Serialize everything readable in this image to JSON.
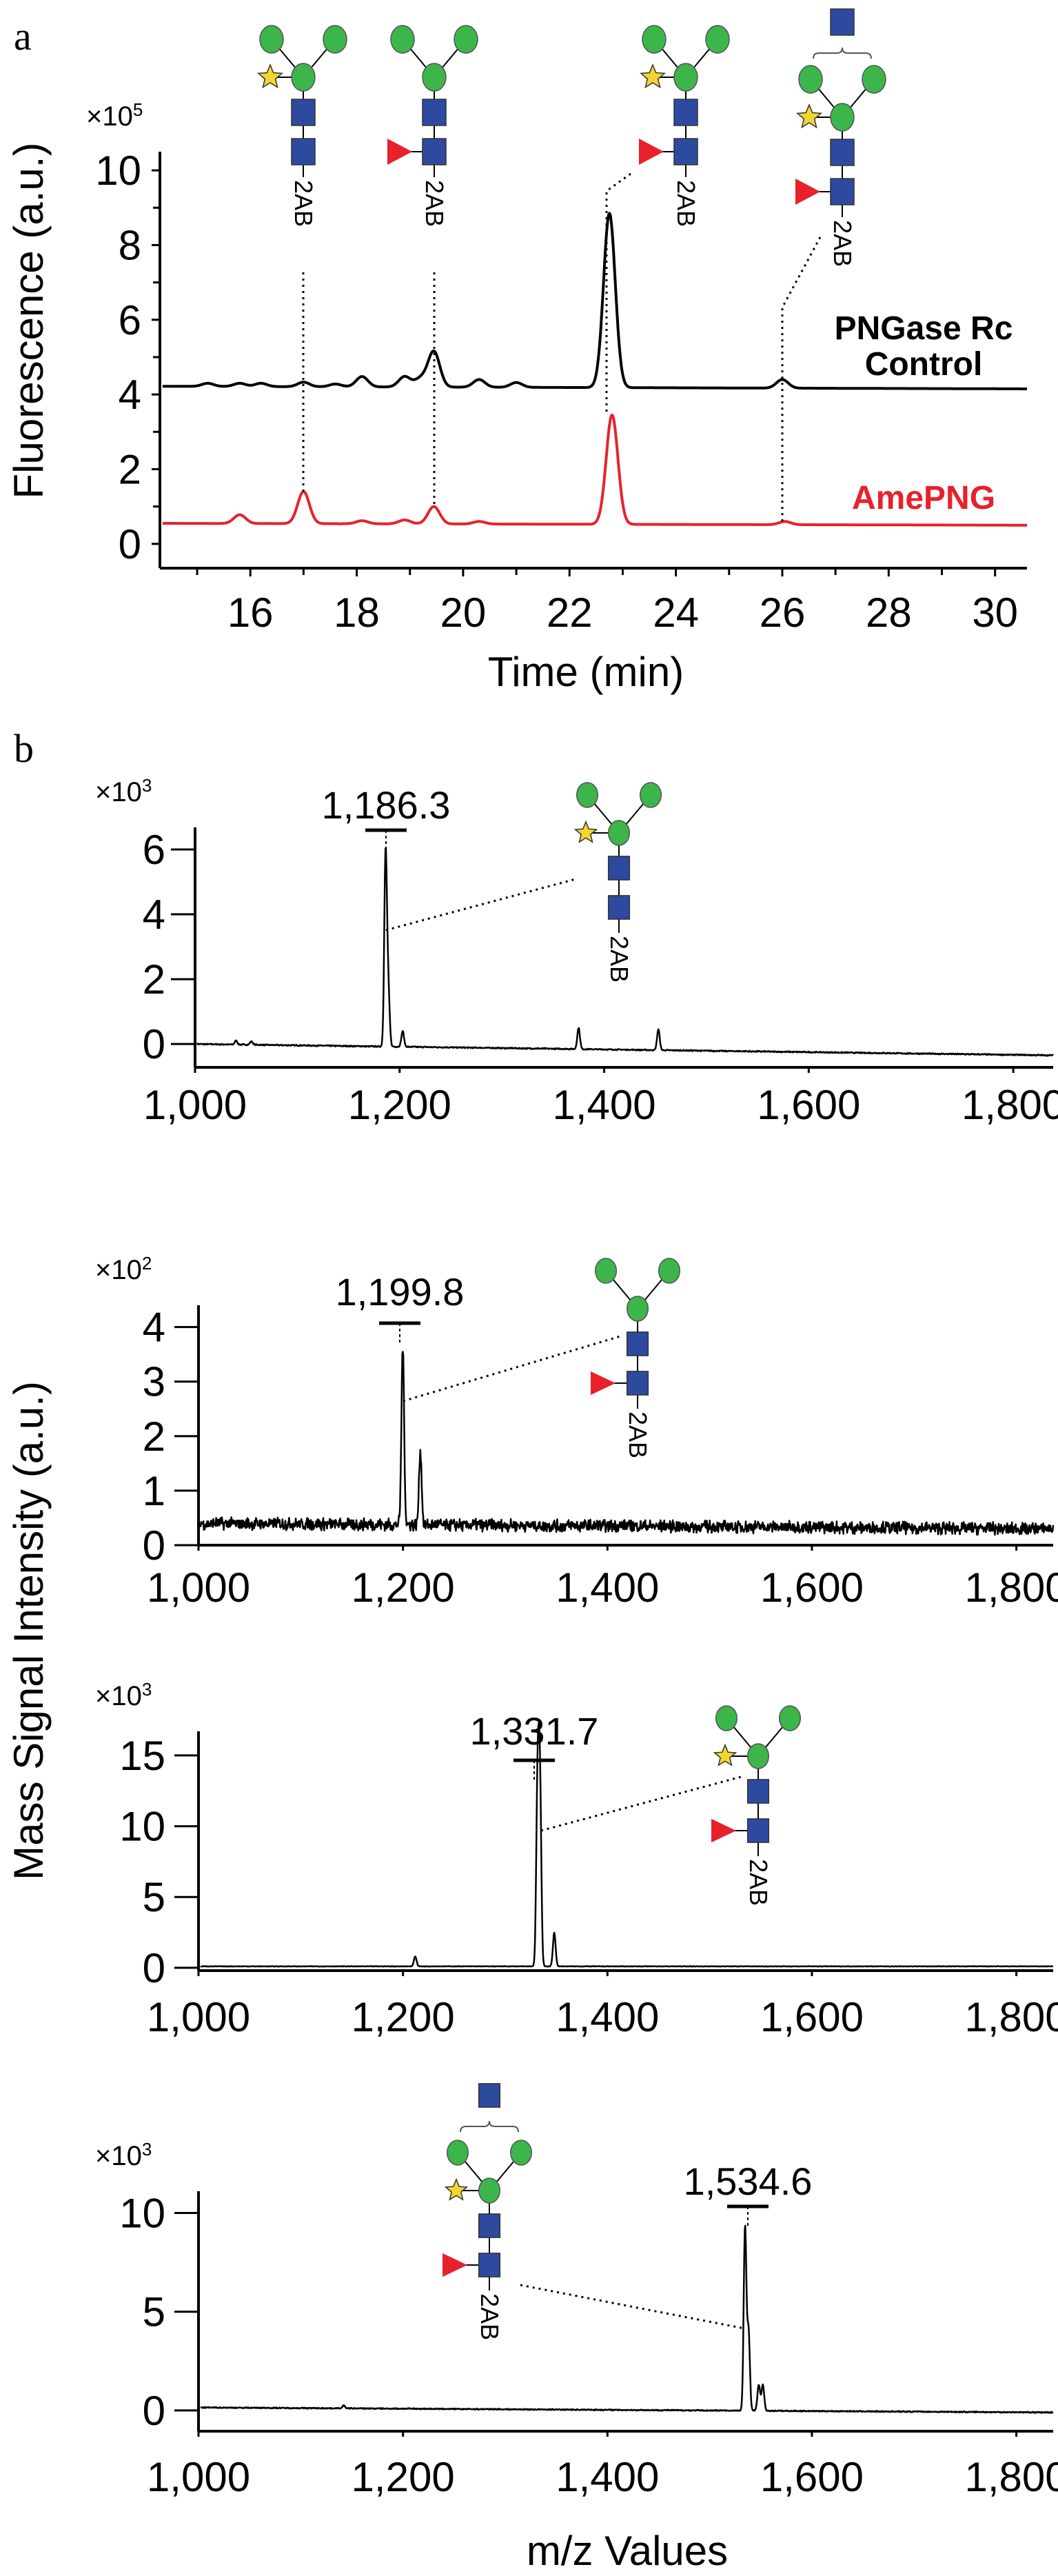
{
  "panel_labels": {
    "a": "a",
    "b": "b"
  },
  "colors": {
    "control": "#000000",
    "amepng": "#e8212b",
    "mannose": "#3cb54a",
    "glcnac": "#2e4a9e",
    "fucose": "#e8212b",
    "xylose": "#f2d531"
  },
  "panel_b": {
    "ylabel": "Mass Signal Intensity (a.u.)",
    "xlabel": "m/z Values"
  },
  "chart_data": [
    {
      "type": "line",
      "panel": "a",
      "xlabel": "Time (min)",
      "ylabel": "Fluorescence (a.u.)",
      "y_multiplier": "×10",
      "y_multiplier_exp": "5",
      "xlim": [
        14.3,
        30.6
      ],
      "ylim": [
        -0.65,
        10.5
      ],
      "xticks": [
        16,
        18,
        20,
        22,
        24,
        26,
        28,
        30
      ],
      "xtick_labels": [
        "16",
        "18",
        "20",
        "22",
        "24",
        "26",
        "28",
        "30"
      ],
      "yticks": [
        0,
        2,
        4,
        6,
        8,
        10
      ],
      "ytick_labels": [
        "0",
        "2",
        "4",
        "6",
        "8",
        "10"
      ],
      "grid": false,
      "series": [
        {
          "label_lines": [
            "PNGase Rc",
            "Control"
          ],
          "color": "#000000",
          "baseline": [
            4.22,
            4.15
          ],
          "peaks": [
            [
              15.2,
              4.3
            ],
            [
              15.8,
              4.3
            ],
            [
              16.2,
              4.3
            ],
            [
              17.0,
              4.33
            ],
            [
              17.6,
              4.28
            ],
            [
              18.1,
              4.48
            ],
            [
              18.9,
              4.48
            ],
            [
              19.2,
              4.42
            ],
            [
              19.45,
              5.15
            ],
            [
              20.3,
              4.4
            ],
            [
              21.0,
              4.32
            ],
            [
              22.75,
              8.85
            ],
            [
              26.0,
              4.4
            ]
          ]
        },
        {
          "label_lines": [
            "AmePNG"
          ],
          "color": "#e8212b",
          "baseline": [
            0.55,
            0.5
          ],
          "peaks": [
            [
              15.8,
              0.78
            ],
            [
              17.0,
              1.4
            ],
            [
              18.1,
              0.62
            ],
            [
              18.9,
              0.64
            ],
            [
              19.45,
              1.0
            ],
            [
              20.3,
              0.6
            ],
            [
              22.8,
              3.45
            ],
            [
              26.05,
              0.6
            ]
          ]
        }
      ],
      "glycans": [
        {
          "xylose": true,
          "fucose": false,
          "bisecting_glcnac": false,
          "label": "2AB"
        },
        {
          "xylose": false,
          "fucose": true,
          "bisecting_glcnac": false,
          "label": "2AB"
        },
        {
          "xylose": true,
          "fucose": true,
          "bisecting_glcnac": false,
          "label": "2AB"
        },
        {
          "xylose": true,
          "fucose": true,
          "bisecting_glcnac": true,
          "label": "2AB"
        }
      ]
    },
    {
      "type": "line",
      "panel": "b",
      "y_multiplier": "×10",
      "y_multiplier_exp": "3",
      "xlim": [
        1000,
        1839
      ],
      "ylim": [
        -0.72,
        6.68
      ],
      "xticks": [
        1000,
        1200,
        1400,
        1600,
        1800
      ],
      "xtick_labels": [
        "1,000",
        "1,200",
        "1,400",
        "1,600",
        "1,800"
      ],
      "yticks": [
        0,
        2,
        4,
        6
      ],
      "ytick_labels": [
        "0",
        "2",
        "4",
        "6"
      ],
      "grid": false,
      "peak_label": "1,186.3",
      "series": [
        {
          "color": "#000000",
          "baseline": [
            0.0,
            -0.35
          ],
          "noise": 0.02,
          "peaks": [
            [
              1040,
              0.1
            ],
            [
              1055,
              0.08
            ],
            [
              1186.3,
              5.9
            ],
            [
              1189,
              1.6
            ],
            [
              1203,
              0.4
            ],
            [
              1375,
              0.5
            ],
            [
              1453,
              0.45
            ]
          ]
        }
      ],
      "glycan": {
        "xylose": true,
        "fucose": false,
        "bisecting_glcnac": false,
        "label": "2AB"
      }
    },
    {
      "type": "line",
      "panel": "b",
      "y_multiplier": "×10",
      "y_multiplier_exp": "2",
      "xlim": [
        1000,
        1836
      ],
      "ylim": [
        0,
        4.4
      ],
      "xticks": [
        1000,
        1200,
        1400,
        1600,
        1800
      ],
      "xtick_labels": [
        "1,000",
        "1,200",
        "1,400",
        "1,600",
        "1,800"
      ],
      "yticks": [
        0,
        1,
        2,
        3,
        4
      ],
      "ytick_labels": [
        "0",
        "1",
        "2",
        "3",
        "4"
      ],
      "grid": false,
      "peak_label": "1,199.8",
      "series": [
        {
          "color": "#000000",
          "baseline": [
            0.4,
            0.3
          ],
          "noise": 0.12,
          "peaks": [
            [
              1199.8,
              3.65
            ],
            [
              1217,
              1.75
            ]
          ]
        }
      ],
      "glycan": {
        "xylose": false,
        "fucose": true,
        "bisecting_glcnac": false,
        "label": "2AB"
      }
    },
    {
      "type": "line",
      "panel": "b",
      "y_multiplier": "×10",
      "y_multiplier_exp": "3",
      "xlim": [
        1000,
        1836
      ],
      "ylim": [
        -0.2,
        16.7
      ],
      "xticks": [
        1000,
        1200,
        1400,
        1600,
        1800
      ],
      "xtick_labels": [
        "1,000",
        "1,200",
        "1,400",
        "1,600",
        "1,800"
      ],
      "yticks": [
        0,
        5,
        10,
        15
      ],
      "ytick_labels": [
        "0",
        "5",
        "10",
        "15"
      ],
      "grid": false,
      "peak_label": "1,331.7",
      "series": [
        {
          "color": "#000000",
          "baseline": [
            0.1,
            0.1
          ],
          "noise": 0.02,
          "peaks": [
            [
              1212,
              0.8
            ],
            [
              1331.7,
              13.0
            ],
            [
              1334,
              12.6
            ],
            [
              1348,
              2.5
            ]
          ]
        }
      ],
      "glycan": {
        "xylose": true,
        "fucose": true,
        "bisecting_glcnac": false,
        "label": "2AB"
      }
    },
    {
      "type": "line",
      "panel": "b",
      "y_multiplier": "×10",
      "y_multiplier_exp": "3",
      "xlim": [
        1000,
        1836
      ],
      "ylim": [
        -1.05,
        11.1
      ],
      "xticks": [
        1000,
        1200,
        1400,
        1600,
        1800
      ],
      "xtick_labels": [
        "1,000",
        "1,200",
        "1,400",
        "1,600",
        "1,800"
      ],
      "yticks": [
        0,
        5,
        10
      ],
      "ytick_labels": [
        "0",
        "5",
        "10"
      ],
      "grid": false,
      "peak_label": "1,534.6",
      "series": [
        {
          "color": "#000000",
          "baseline": [
            0.15,
            -0.1
          ],
          "noise": 0.03,
          "peaks": [
            [
              1142,
              0.25
            ],
            [
              1534.6,
              9.3
            ],
            [
              1538,
              4.0
            ],
            [
              1548,
              1.3
            ],
            [
              1552,
              1.3
            ]
          ]
        }
      ],
      "glycan": {
        "xylose": true,
        "fucose": true,
        "bisecting_glcnac": true,
        "label": "2AB"
      }
    }
  ]
}
